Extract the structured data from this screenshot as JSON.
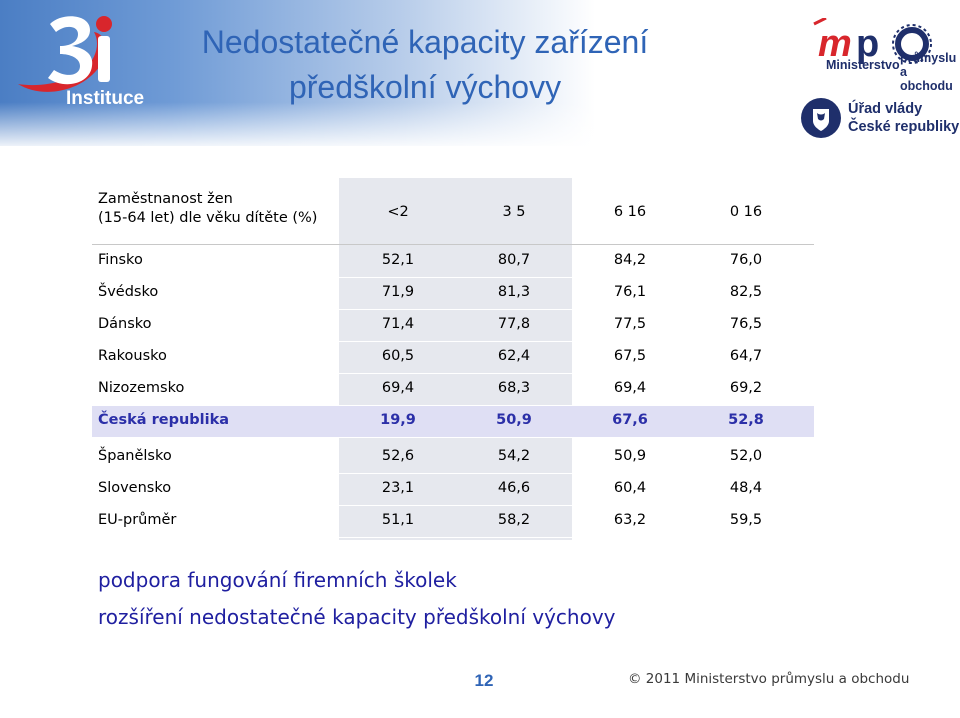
{
  "header": {
    "logo_caption": "Instituce",
    "title_line1": "Nedostatečné kapacity zařízení",
    "title_line2": "předškolní výchovy",
    "mpo_line1": "Ministerstvo",
    "mpo_line2": "průmyslu",
    "mpo_line3": "a obchodu",
    "gov_line1": "Úřad vlády",
    "gov_line2": "České republiky",
    "colors": {
      "title": "#2f64b6",
      "logo_red": "#d8262c",
      "navy": "#1f2f6b"
    }
  },
  "table": {
    "header_label_line1": "Zaměstnanost žen",
    "header_label_line2": "(15-64 let) dle věku dítěte (%)",
    "columns": [
      "<2",
      "3 5",
      "6 16",
      "0 16"
    ],
    "rows": [
      {
        "name": "Finsko",
        "values": [
          "52,1",
          "80,7",
          "84,2",
          "76,0"
        ]
      },
      {
        "name": "Švédsko",
        "values": [
          "71,9",
          "81,3",
          "76,1",
          "82,5"
        ]
      },
      {
        "name": "Dánsko",
        "values": [
          "71,4",
          "77,8",
          "77,5",
          "76,5"
        ]
      },
      {
        "name": "Rakousko",
        "values": [
          "60,5",
          "62,4",
          "67,5",
          "64,7"
        ]
      },
      {
        "name": "Nizozemsko",
        "values": [
          "69,4",
          "68,3",
          "69,4",
          "69,2"
        ]
      },
      {
        "name": "Česká republika",
        "values": [
          "19,9",
          "50,9",
          "67,6",
          "52,8"
        ]
      },
      {
        "name": "Španělsko",
        "values": [
          "52,6",
          "54,2",
          "50,9",
          "52,0"
        ]
      },
      {
        "name": "Slovensko",
        "values": [
          "23,1",
          "46,6",
          "60,4",
          "48,4"
        ]
      },
      {
        "name": "EU-průměr",
        "values": [
          "51,1",
          "58,2",
          "63,2",
          "59,5"
        ]
      }
    ],
    "highlight_color": "#2b2fa8"
  },
  "bullets": [
    "podpora fungování firemních školek",
    "rozšíření nedostatečné kapacity předškolní výchovy"
  ],
  "footer": {
    "page_number": "12",
    "copyright": "© 2011 Ministerstvo průmyslu a obchodu"
  }
}
